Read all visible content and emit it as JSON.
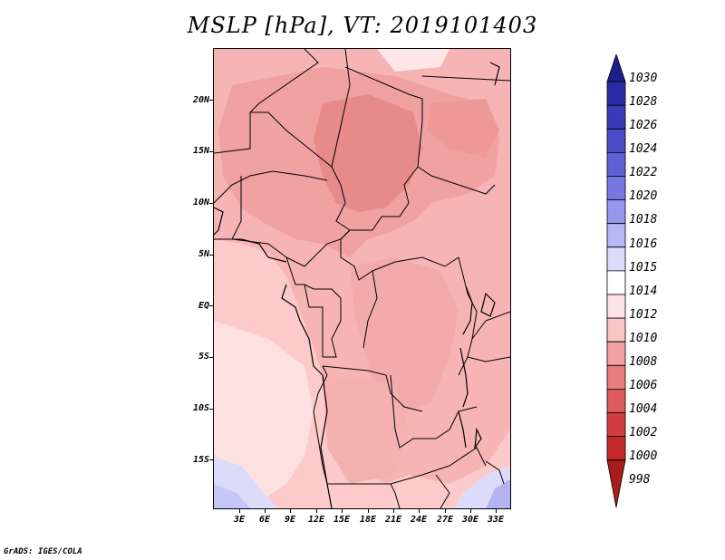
{
  "title": "MSLP [hPa], VT: 2019101403",
  "footer": "GrADS: IGES/COLA",
  "chart_data": {
    "type": "heatmap",
    "title": "MSLP [hPa], VT: 2019101403",
    "variable": "MSLP",
    "units": "hPa",
    "valid_time": "2019101403",
    "latitude_ticks": [
      "20N",
      "15N",
      "10N",
      "5N",
      "EQ",
      "5S",
      "10S",
      "15S"
    ],
    "longitude_ticks": [
      "3E",
      "6E",
      "9E",
      "12E",
      "15E",
      "18E",
      "21E",
      "24E",
      "27E",
      "30E",
      "33E"
    ],
    "colorbar_levels": [
      "1030",
      "1028",
      "1026",
      "1024",
      "1022",
      "1020",
      "1018",
      "1016",
      "1015",
      "1014",
      "1012",
      "1010",
      "1008",
      "1006",
      "1004",
      "1002",
      "1000",
      "998"
    ],
    "colorbar_colors": [
      "#1e1e8c",
      "#2b2ba8",
      "#3a3ab8",
      "#4b4bc8",
      "#5f5fd6",
      "#7878e2",
      "#9696ec",
      "#b8b8f4",
      "#dcdcfa",
      "#ffffff",
      "#fde4e4",
      "#f8c4c4",
      "#f2a0a0",
      "#e67e7e",
      "#dc5c5c",
      "#d23e3e",
      "#c42a2a",
      "#a81c1c"
    ]
  }
}
